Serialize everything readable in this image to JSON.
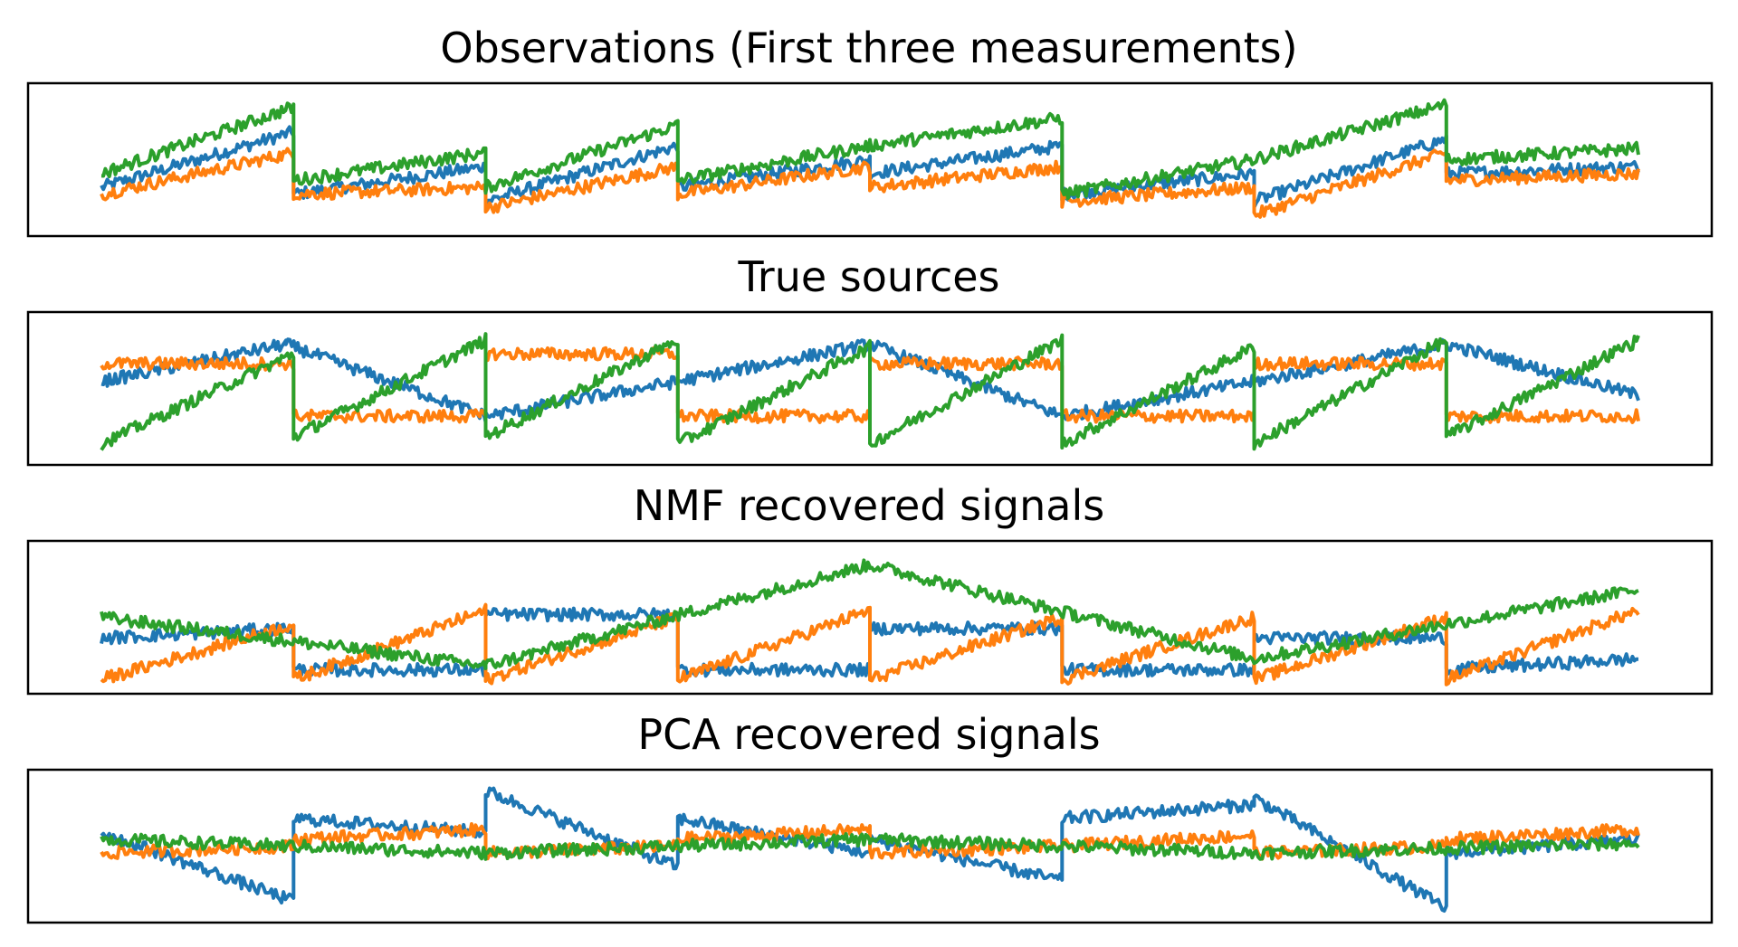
{
  "chart_data": [
    {
      "type": "line",
      "title": "Observations (First three measurements)",
      "xlabel": "",
      "ylabel": "",
      "x_range": [
        0,
        2000
      ],
      "ticks_visible": false,
      "legend": "none",
      "grid": false,
      "series": [
        {
          "color": "#1f77b4",
          "segments": [
            {
              "x": [
                0,
                250
              ],
              "y": [
                0.3,
                0.7
              ]
            },
            {
              "x": [
                250,
                500
              ],
              "y": [
                0.25,
                0.45
              ]
            },
            {
              "x": [
                500,
                750
              ],
              "y": [
                0.2,
                0.6
              ]
            },
            {
              "x": [
                750,
                1000
              ],
              "y": [
                0.3,
                0.5
              ]
            },
            {
              "x": [
                1000,
                1250
              ],
              "y": [
                0.4,
                0.6
              ]
            },
            {
              "x": [
                1250,
                1500
              ],
              "y": [
                0.25,
                0.4
              ]
            },
            {
              "x": [
                1500,
                1750
              ],
              "y": [
                0.2,
                0.65
              ]
            },
            {
              "x": [
                1750,
                2000
              ],
              "y": [
                0.4,
                0.45
              ]
            }
          ]
        },
        {
          "color": "#ff7f0e",
          "segments": [
            {
              "x": [
                0,
                250
              ],
              "y": [
                0.25,
                0.55
              ]
            },
            {
              "x": [
                250,
                500
              ],
              "y": [
                0.25,
                0.3
              ]
            },
            {
              "x": [
                500,
                750
              ],
              "y": [
                0.15,
                0.45
              ]
            },
            {
              "x": [
                750,
                1000
              ],
              "y": [
                0.25,
                0.45
              ]
            },
            {
              "x": [
                1000,
                1250
              ],
              "y": [
                0.3,
                0.45
              ]
            },
            {
              "x": [
                1250,
                1500
              ],
              "y": [
                0.2,
                0.3
              ]
            },
            {
              "x": [
                1500,
                1750
              ],
              "y": [
                0.1,
                0.55
              ]
            },
            {
              "x": [
                1750,
                2000
              ],
              "y": [
                0.35,
                0.4
              ]
            }
          ]
        },
        {
          "color": "#2ca02c",
          "segments": [
            {
              "x": [
                0,
                250
              ],
              "y": [
                0.4,
                0.88
              ]
            },
            {
              "x": [
                250,
                500
              ],
              "y": [
                0.35,
                0.55
              ]
            },
            {
              "x": [
                500,
                750
              ],
              "y": [
                0.3,
                0.75
              ]
            },
            {
              "x": [
                750,
                1000
              ],
              "y": [
                0.35,
                0.6
              ]
            },
            {
              "x": [
                1000,
                1250
              ],
              "y": [
                0.6,
                0.8
              ]
            },
            {
              "x": [
                1250,
                1500
              ],
              "y": [
                0.25,
                0.5
              ]
            },
            {
              "x": [
                1500,
                1750
              ],
              "y": [
                0.5,
                0.9
              ]
            },
            {
              "x": [
                1750,
                2000
              ],
              "y": [
                0.5,
                0.58
              ]
            }
          ]
        }
      ]
    },
    {
      "type": "line",
      "title": "True sources",
      "xlabel": "",
      "ylabel": "",
      "x_range": [
        0,
        2000
      ],
      "ticks_visible": false,
      "legend": "none",
      "grid": false,
      "series": [
        {
          "color": "#1f77b4",
          "segments": [
            {
              "x": [
                0,
                240
              ],
              "y": [
                0.55,
                0.82
              ]
            },
            {
              "x": [
                240,
                500
              ],
              "y": [
                0.82,
                0.3
              ]
            },
            {
              "x": [
                500,
                750
              ],
              "y": [
                0.3,
                0.55
              ]
            },
            {
              "x": [
                750,
                1000
              ],
              "y": [
                0.55,
                0.82
              ]
            },
            {
              "x": [
                1000,
                1250
              ],
              "y": [
                0.82,
                0.3
              ]
            },
            {
              "x": [
                1250,
                1500
              ],
              "y": [
                0.3,
                0.55
              ]
            },
            {
              "x": [
                1500,
                1750
              ],
              "y": [
                0.55,
                0.82
              ]
            },
            {
              "x": [
                1750,
                2000
              ],
              "y": [
                0.82,
                0.45
              ]
            }
          ]
        },
        {
          "color": "#ff7f0e",
          "segments": [
            {
              "x": [
                0,
                250
              ],
              "y": [
                0.68,
                0.68
              ]
            },
            {
              "x": [
                250,
                500
              ],
              "y": [
                0.3,
                0.3
              ]
            },
            {
              "x": [
                500,
                750
              ],
              "y": [
                0.75,
                0.75
              ]
            },
            {
              "x": [
                750,
                1000
              ],
              "y": [
                0.3,
                0.3
              ]
            },
            {
              "x": [
                1000,
                1250
              ],
              "y": [
                0.68,
                0.68
              ]
            },
            {
              "x": [
                1250,
                1500
              ],
              "y": [
                0.3,
                0.3
              ]
            },
            {
              "x": [
                1500,
                1750
              ],
              "y": [
                0.68,
                0.68
              ]
            },
            {
              "x": [
                1750,
                2000
              ],
              "y": [
                0.3,
                0.3
              ]
            }
          ]
        },
        {
          "color": "#2ca02c",
          "segments": [
            {
              "x": [
                0,
                250
              ],
              "y": [
                0.1,
                0.75
              ]
            },
            {
              "x": [
                250,
                500
              ],
              "y": [
                0.15,
                0.85
              ]
            },
            {
              "x": [
                500,
                750
              ],
              "y": [
                0.15,
                0.85
              ]
            },
            {
              "x": [
                750,
                1000
              ],
              "y": [
                0.1,
                0.8
              ]
            },
            {
              "x": [
                1000,
                1250
              ],
              "y": [
                0.1,
                0.85
              ]
            },
            {
              "x": [
                1250,
                1500
              ],
              "y": [
                0.1,
                0.8
              ]
            },
            {
              "x": [
                1500,
                1750
              ],
              "y": [
                0.1,
                0.85
              ]
            },
            {
              "x": [
                1750,
                2000
              ],
              "y": [
                0.15,
                0.85
              ]
            }
          ]
        }
      ]
    },
    {
      "type": "line",
      "title": "NMF recovered signals",
      "xlabel": "",
      "ylabel": "",
      "x_range": [
        0,
        2000
      ],
      "ticks_visible": false,
      "legend": "none",
      "grid": false,
      "series": [
        {
          "color": "#1f77b4",
          "segments": [
            {
              "x": [
                0,
                250
              ],
              "y": [
                0.35,
                0.42
              ]
            },
            {
              "x": [
                250,
                500
              ],
              "y": [
                0.12,
                0.12
              ]
            },
            {
              "x": [
                500,
                750
              ],
              "y": [
                0.52,
                0.52
              ]
            },
            {
              "x": [
                750,
                1000
              ],
              "y": [
                0.12,
                0.12
              ]
            },
            {
              "x": [
                1000,
                1250
              ],
              "y": [
                0.42,
                0.42
              ]
            },
            {
              "x": [
                1250,
                1500
              ],
              "y": [
                0.12,
                0.12
              ]
            },
            {
              "x": [
                1500,
                1750
              ],
              "y": [
                0.35,
                0.35
              ]
            },
            {
              "x": [
                1750,
                2000
              ],
              "y": [
                0.12,
                0.2
              ]
            }
          ]
        },
        {
          "color": "#ff7f0e",
          "segments": [
            {
              "x": [
                0,
                250
              ],
              "y": [
                0.05,
                0.45
              ]
            },
            {
              "x": [
                250,
                500
              ],
              "y": [
                0.05,
                0.55
              ]
            },
            {
              "x": [
                500,
                750
              ],
              "y": [
                0.05,
                0.5
              ]
            },
            {
              "x": [
                750,
                1000
              ],
              "y": [
                0.05,
                0.55
              ]
            },
            {
              "x": [
                1000,
                1250
              ],
              "y": [
                0.05,
                0.5
              ]
            },
            {
              "x": [
                1250,
                1500
              ],
              "y": [
                0.05,
                0.5
              ]
            },
            {
              "x": [
                1500,
                1750
              ],
              "y": [
                0.05,
                0.5
              ]
            },
            {
              "x": [
                1750,
                2000
              ],
              "y": [
                0.05,
                0.55
              ]
            }
          ]
        },
        {
          "color": "#2ca02c",
          "segments": [
            {
              "x": [
                0,
                500
              ],
              "y": [
                0.5,
                0.15
              ]
            },
            {
              "x": [
                500,
                1000
              ],
              "y": [
                0.15,
                0.88
              ]
            },
            {
              "x": [
                1000,
                1500
              ],
              "y": [
                0.88,
                0.2
              ]
            },
            {
              "x": [
                1500,
                2000
              ],
              "y": [
                0.2,
                0.7
              ]
            }
          ]
        }
      ]
    },
    {
      "type": "line",
      "title": "PCA recovered signals",
      "xlabel": "",
      "ylabel": "",
      "x_range": [
        0,
        2000
      ],
      "ticks_visible": false,
      "legend": "none",
      "grid": false,
      "series": [
        {
          "color": "#1f77b4",
          "segments": [
            {
              "x": [
                0,
                250
              ],
              "y": [
                0.6,
                0.1
              ]
            },
            {
              "x": [
                250,
                500
              ],
              "y": [
                0.7,
                0.6
              ]
            },
            {
              "x": [
                500,
                750
              ],
              "y": [
                0.9,
                0.35
              ]
            },
            {
              "x": [
                750,
                1000
              ],
              "y": [
                0.7,
                0.45
              ]
            },
            {
              "x": [
                1000,
                1250
              ],
              "y": [
                0.55,
                0.25
              ]
            },
            {
              "x": [
                1250,
                1500
              ],
              "y": [
                0.7,
                0.8
              ]
            },
            {
              "x": [
                1500,
                1750
              ],
              "y": [
                0.85,
                0.05
              ]
            },
            {
              "x": [
                1750,
                2000
              ],
              "y": [
                0.45,
                0.55
              ]
            }
          ]
        },
        {
          "color": "#ff7f0e",
          "segments": [
            {
              "x": [
                0,
                250
              ],
              "y": [
                0.45,
                0.5
              ]
            },
            {
              "x": [
                250,
                500
              ],
              "y": [
                0.55,
                0.62
              ]
            },
            {
              "x": [
                500,
                750
              ],
              "y": [
                0.45,
                0.5
              ]
            },
            {
              "x": [
                750,
                1000
              ],
              "y": [
                0.55,
                0.62
              ]
            },
            {
              "x": [
                1000,
                1250
              ],
              "y": [
                0.45,
                0.5
              ]
            },
            {
              "x": [
                1250,
                1500
              ],
              "y": [
                0.5,
                0.58
              ]
            },
            {
              "x": [
                1500,
                1750
              ],
              "y": [
                0.45,
                0.5
              ]
            },
            {
              "x": [
                1750,
                2000
              ],
              "y": [
                0.55,
                0.62
              ]
            }
          ]
        },
        {
          "color": "#2ca02c",
          "segments": [
            {
              "x": [
                0,
                500
              ],
              "y": [
                0.55,
                0.45
              ]
            },
            {
              "x": [
                500,
                1000
              ],
              "y": [
                0.45,
                0.55
              ]
            },
            {
              "x": [
                1000,
                1500
              ],
              "y": [
                0.55,
                0.45
              ]
            },
            {
              "x": [
                1500,
                2000
              ],
              "y": [
                0.45,
                0.52
              ]
            }
          ]
        }
      ]
    }
  ]
}
